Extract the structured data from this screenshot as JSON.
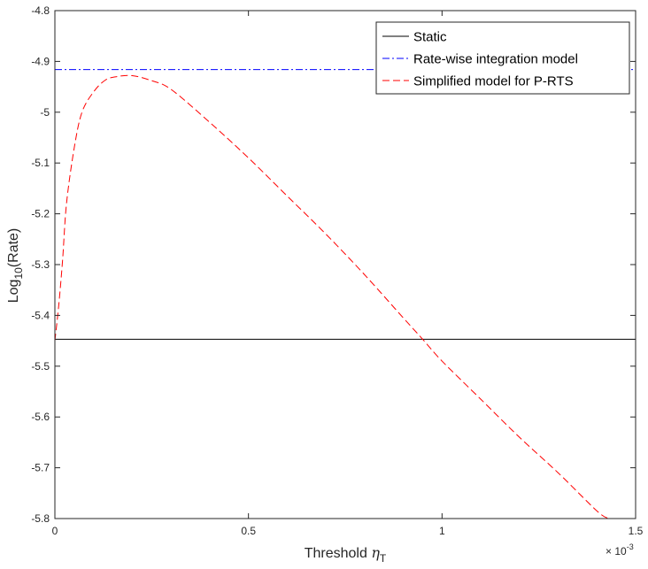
{
  "chart_data": {
    "type": "line",
    "title": "",
    "xlabel": "Threshold",
    "xlabel_symbol": "η",
    "xlabel_subscript": "T",
    "ylabel": "Log",
    "ylabel_subscript": "10",
    "ylabel_suffix": "(Rate)",
    "x_exponent_label": "× 10",
    "x_exponent": "-3",
    "xlim": [
      0,
      1.5
    ],
    "ylim": [
      -5.8,
      -4.8
    ],
    "xticks": [
      "0",
      "0.5",
      "1",
      "1.5"
    ],
    "yticks": [
      "-4.8",
      "-4.9",
      "-5",
      "-5.1",
      "-5.2",
      "-5.3",
      "-5.4",
      "-5.5",
      "-5.6",
      "-5.7",
      "-5.8"
    ],
    "legend_position": "top-right",
    "grid": false,
    "series": [
      {
        "name": "Static",
        "style": "solid",
        "color": "#000000",
        "x": [
          0,
          1.5
        ],
        "y": [
          -5.447,
          -5.447
        ]
      },
      {
        "name": "Rate-wise integration model",
        "style": "dashdot",
        "color": "#0000ff",
        "x": [
          0,
          1.5
        ],
        "y": [
          -4.916,
          -4.916
        ]
      },
      {
        "name": "Simplified model for P-RTS",
        "style": "dashed",
        "color": "#ff0000",
        "x": [
          0,
          0.01,
          0.02,
          0.03,
          0.05,
          0.07,
          0.1,
          0.13,
          0.16,
          0.2,
          0.25,
          0.3,
          0.4,
          0.5,
          0.6,
          0.7,
          0.8,
          0.9,
          0.95,
          1.0,
          1.1,
          1.2,
          1.3,
          1.4,
          1.43
        ],
        "y": [
          -5.45,
          -5.38,
          -5.29,
          -5.18,
          -5.07,
          -5.0,
          -4.96,
          -4.937,
          -4.93,
          -4.928,
          -4.938,
          -4.955,
          -5.02,
          -5.09,
          -5.165,
          -5.24,
          -5.32,
          -5.405,
          -5.447,
          -5.49,
          -5.565,
          -5.64,
          -5.71,
          -5.785,
          -5.8
        ]
      }
    ]
  }
}
